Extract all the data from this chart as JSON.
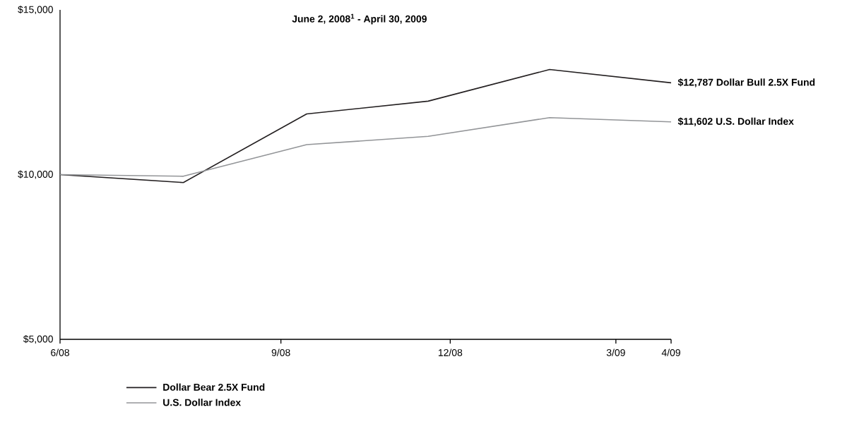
{
  "chart_data": {
    "type": "line",
    "title": "June 2, 2008$^{1}$ - April 30, 2009",
    "x": [
      "2008-06-02",
      "2008-08-08",
      "2008-10-14",
      "2008-12-19",
      "2009-02-23",
      "2009-04-30"
    ],
    "series": [
      {
        "name": "Dollar Bear 2.5X Fund",
        "color": "#231f20",
        "values": [
          10000,
          9760,
          11840,
          12230,
          13190,
          12787
        ]
      },
      {
        "name": "U.S. Dollar Index",
        "color": "#939598",
        "values": [
          10000,
          9950,
          10910,
          11160,
          11730,
          11602
        ]
      }
    ],
    "xlim": [
      "2008-06-02",
      "2009-04-30"
    ],
    "xticks": [
      {
        "value": "2008-06-02",
        "label": "6/08"
      },
      {
        "value": "2008-09-30",
        "label": "9/08"
      },
      {
        "value": "2008-12-31",
        "label": "12/08"
      },
      {
        "value": "2009-03-31",
        "label": "3/09"
      },
      {
        "value": "2009-04-30",
        "label": "4/09"
      }
    ],
    "ylim": [
      5000,
      15000
    ],
    "yticks": [
      {
        "value": 5000,
        "label": "$5,000"
      },
      {
        "value": 10000,
        "label": "$10,000"
      },
      {
        "value": 15000,
        "label": "$15,000"
      }
    ],
    "annotations": [
      {
        "text": "$12,787 Dollar Bull 2.5X Fund",
        "x": "2009-04-30",
        "y": 12787
      },
      {
        "text": "$11,602 U.S. Dollar Index",
        "x": "2009-04-30",
        "y": 11602
      }
    ],
    "legend": "bottom"
  }
}
